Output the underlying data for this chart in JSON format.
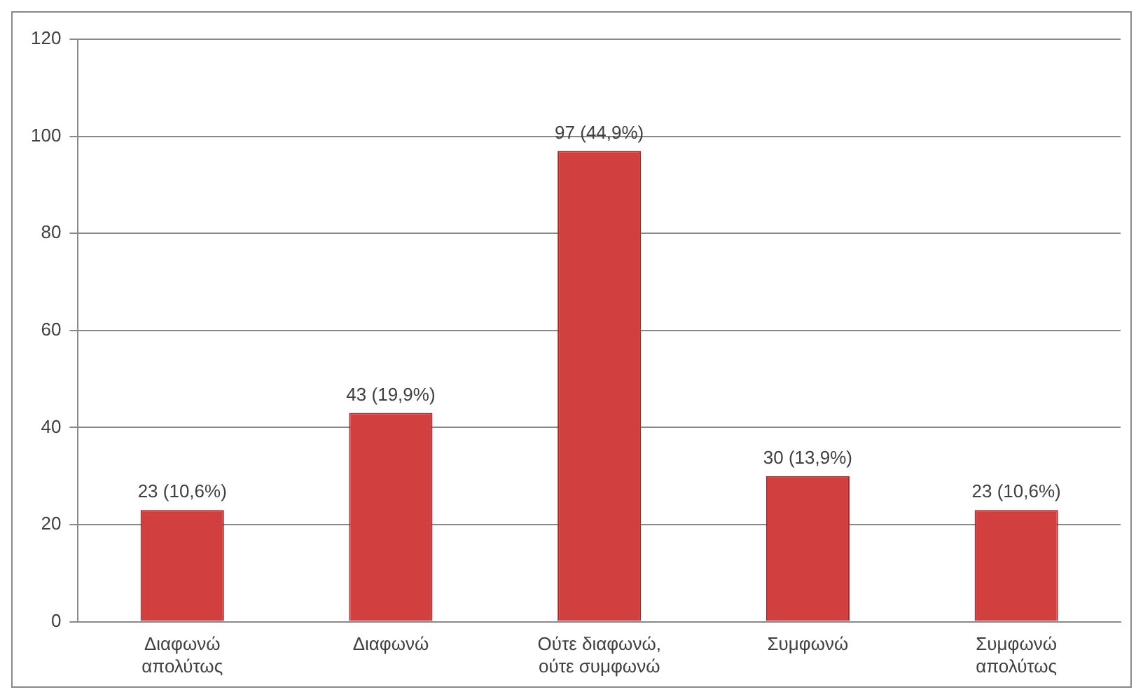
{
  "chart_data": {
    "type": "bar",
    "categories": [
      "Διαφωνώ απολύτως",
      "Διαφωνώ",
      "Ούτε διαφωνώ, ούτε συμφωνώ",
      "Συμφωνώ",
      "Συμφωνώ απολύτως"
    ],
    "values": [
      23,
      43,
      97,
      30,
      23
    ],
    "value_labels": [
      "23 (10,6%)",
      "43 (19,9%)",
      "97 (44,9%)",
      "30 (13,9%)",
      "23 (10,6%)"
    ],
    "color": "#d23f3f",
    "ylim": [
      0,
      120
    ],
    "yticks": [
      0,
      20,
      40,
      60,
      80,
      100,
      120
    ],
    "grid": "y",
    "legend": false
  }
}
